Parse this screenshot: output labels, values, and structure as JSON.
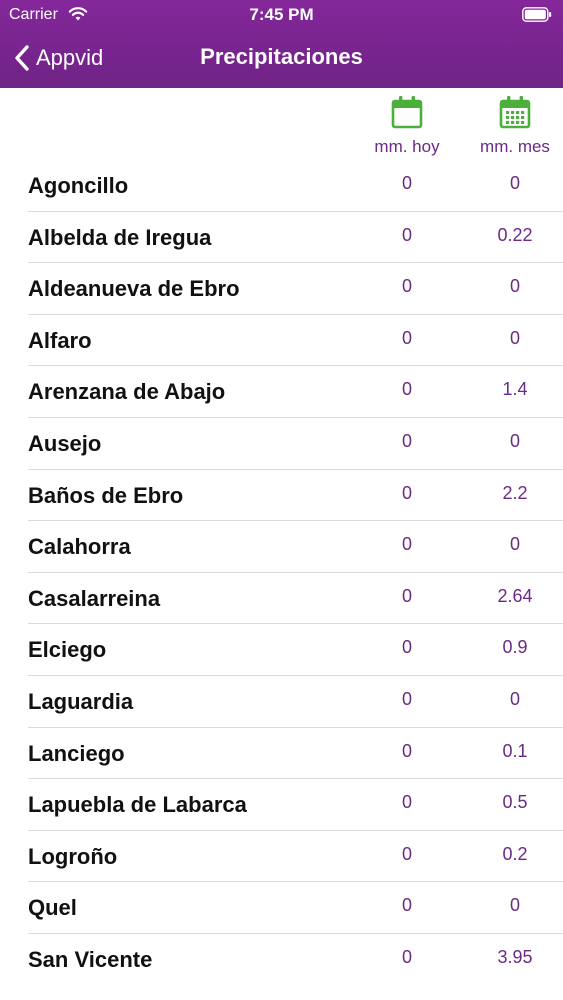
{
  "status_bar": {
    "carrier": "Carrier",
    "time": "7:45 PM"
  },
  "nav": {
    "back_label": "Appvid",
    "title": "Precipitaciones"
  },
  "columns": {
    "today_label": "mm. hoy",
    "month_label": "mm. mes"
  },
  "colors": {
    "header": "#7b2590",
    "accent": "#6b2a85",
    "calendar_icon": "#4caf3c"
  },
  "rows": [
    {
      "name": "Agoncillo",
      "today": "0",
      "month": "0"
    },
    {
      "name": "Albelda de Iregua",
      "today": "0",
      "month": "0.22"
    },
    {
      "name": "Aldeanueva de Ebro",
      "today": "0",
      "month": "0"
    },
    {
      "name": "Alfaro",
      "today": "0",
      "month": "0"
    },
    {
      "name": "Arenzana de Abajo",
      "today": "0",
      "month": "1.4"
    },
    {
      "name": "Ausejo",
      "today": "0",
      "month": "0"
    },
    {
      "name": "Baños de Ebro",
      "today": "0",
      "month": "2.2"
    },
    {
      "name": "Calahorra",
      "today": "0",
      "month": "0"
    },
    {
      "name": "Casalarreina",
      "today": "0",
      "month": "2.64"
    },
    {
      "name": "Elciego",
      "today": "0",
      "month": "0.9"
    },
    {
      "name": "Laguardia",
      "today": "0",
      "month": "0"
    },
    {
      "name": "Lanciego",
      "today": "0",
      "month": "0.1"
    },
    {
      "name": "Lapuebla de Labarca",
      "today": "0",
      "month": "0.5"
    },
    {
      "name": "Logroño",
      "today": "0",
      "month": "0.2"
    },
    {
      "name": "Quel",
      "today": "0",
      "month": "0"
    },
    {
      "name": "San Vicente",
      "today": "0",
      "month": "3.95"
    }
  ]
}
